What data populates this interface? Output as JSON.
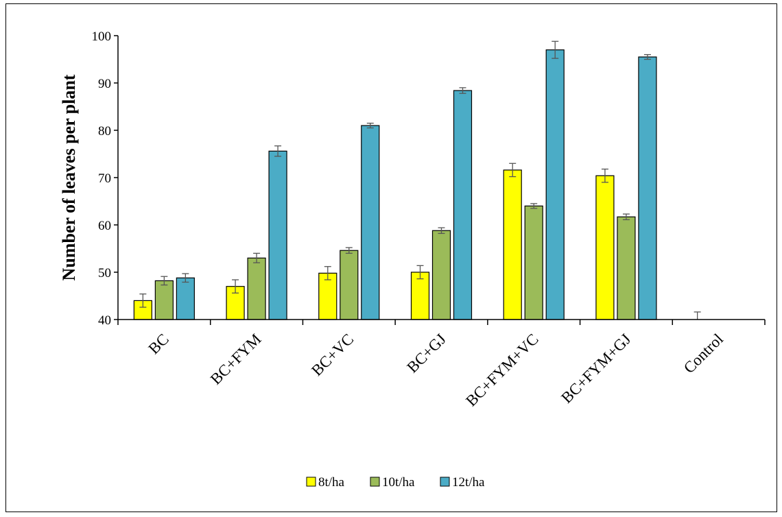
{
  "chart_data": {
    "type": "bar",
    "title": "",
    "xlabel": "",
    "ylabel": "Number of leaves per plant",
    "ylim": [
      40,
      100
    ],
    "yticks": [
      40,
      50,
      60,
      70,
      80,
      90,
      100
    ],
    "grid": false,
    "legend_position": "bottom",
    "categories": [
      "BC",
      "BC+FYM",
      "BC+VC",
      "BC+GJ",
      "BC+FYM+VC",
      "BC+FYM+GJ",
      "Control"
    ],
    "series": [
      {
        "name": "8t/ha",
        "color": "#ffff00",
        "values": [
          44.0,
          47.0,
          49.8,
          50.0,
          71.6,
          70.4,
          40.2
        ],
        "errors": [
          1.4,
          1.4,
          1.4,
          1.4,
          1.4,
          1.4,
          1.4
        ]
      },
      {
        "name": "10t/ha",
        "color": "#9bbb59",
        "values": [
          48.2,
          53.0,
          54.6,
          58.8,
          64.0,
          61.7,
          null
        ],
        "errors": [
          0.9,
          1.0,
          0.6,
          0.6,
          0.5,
          0.6,
          0
        ]
      },
      {
        "name": "12t/ha",
        "color": "#4bacc6",
        "values": [
          48.8,
          75.6,
          81.0,
          88.4,
          97.0,
          95.5,
          null
        ],
        "errors": [
          0.9,
          1.1,
          0.5,
          0.6,
          1.8,
          0.5,
          0
        ]
      }
    ]
  }
}
